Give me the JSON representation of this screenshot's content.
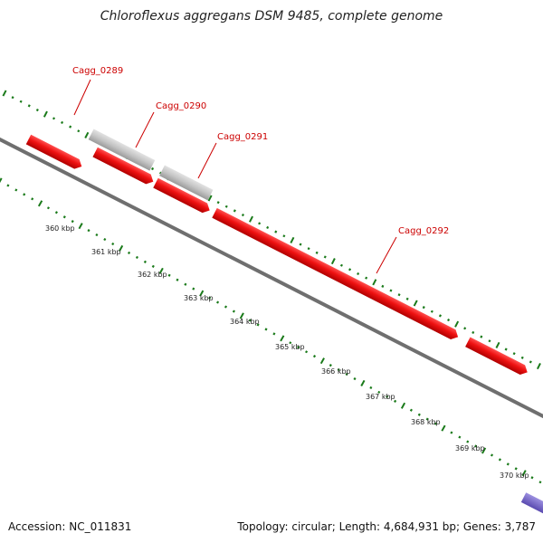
{
  "title": "Chloroflexus aggregans DSM 9485, complete genome",
  "footer": {
    "accession": "Accession: NC_011831",
    "topology": "Topology: circular; Length: 4,684,931 bp; Genes: 3,787"
  },
  "colors": {
    "gene_red": "#ee1111",
    "gene_red_dark": "#b00000",
    "gene_pink": "#f08080",
    "gene_grey": "#c4c4c4",
    "gene_blue": "#7766cc",
    "label_red": "#cc0000",
    "backbone": "#7a7a7a",
    "tick_green": "#1a7a1a"
  },
  "gene_labels": [
    "Cagg_0289",
    "Cagg_0290",
    "Cagg_0291",
    "Cagg_0292"
  ],
  "kbp_ticks": [
    "360 kbp",
    "361 kbp",
    "362 kbp",
    "363 kbp",
    "364 kbp",
    "365 kbp",
    "366 kbp",
    "367 kbp",
    "368 kbp",
    "369 kbp",
    "370 kbp"
  ]
}
